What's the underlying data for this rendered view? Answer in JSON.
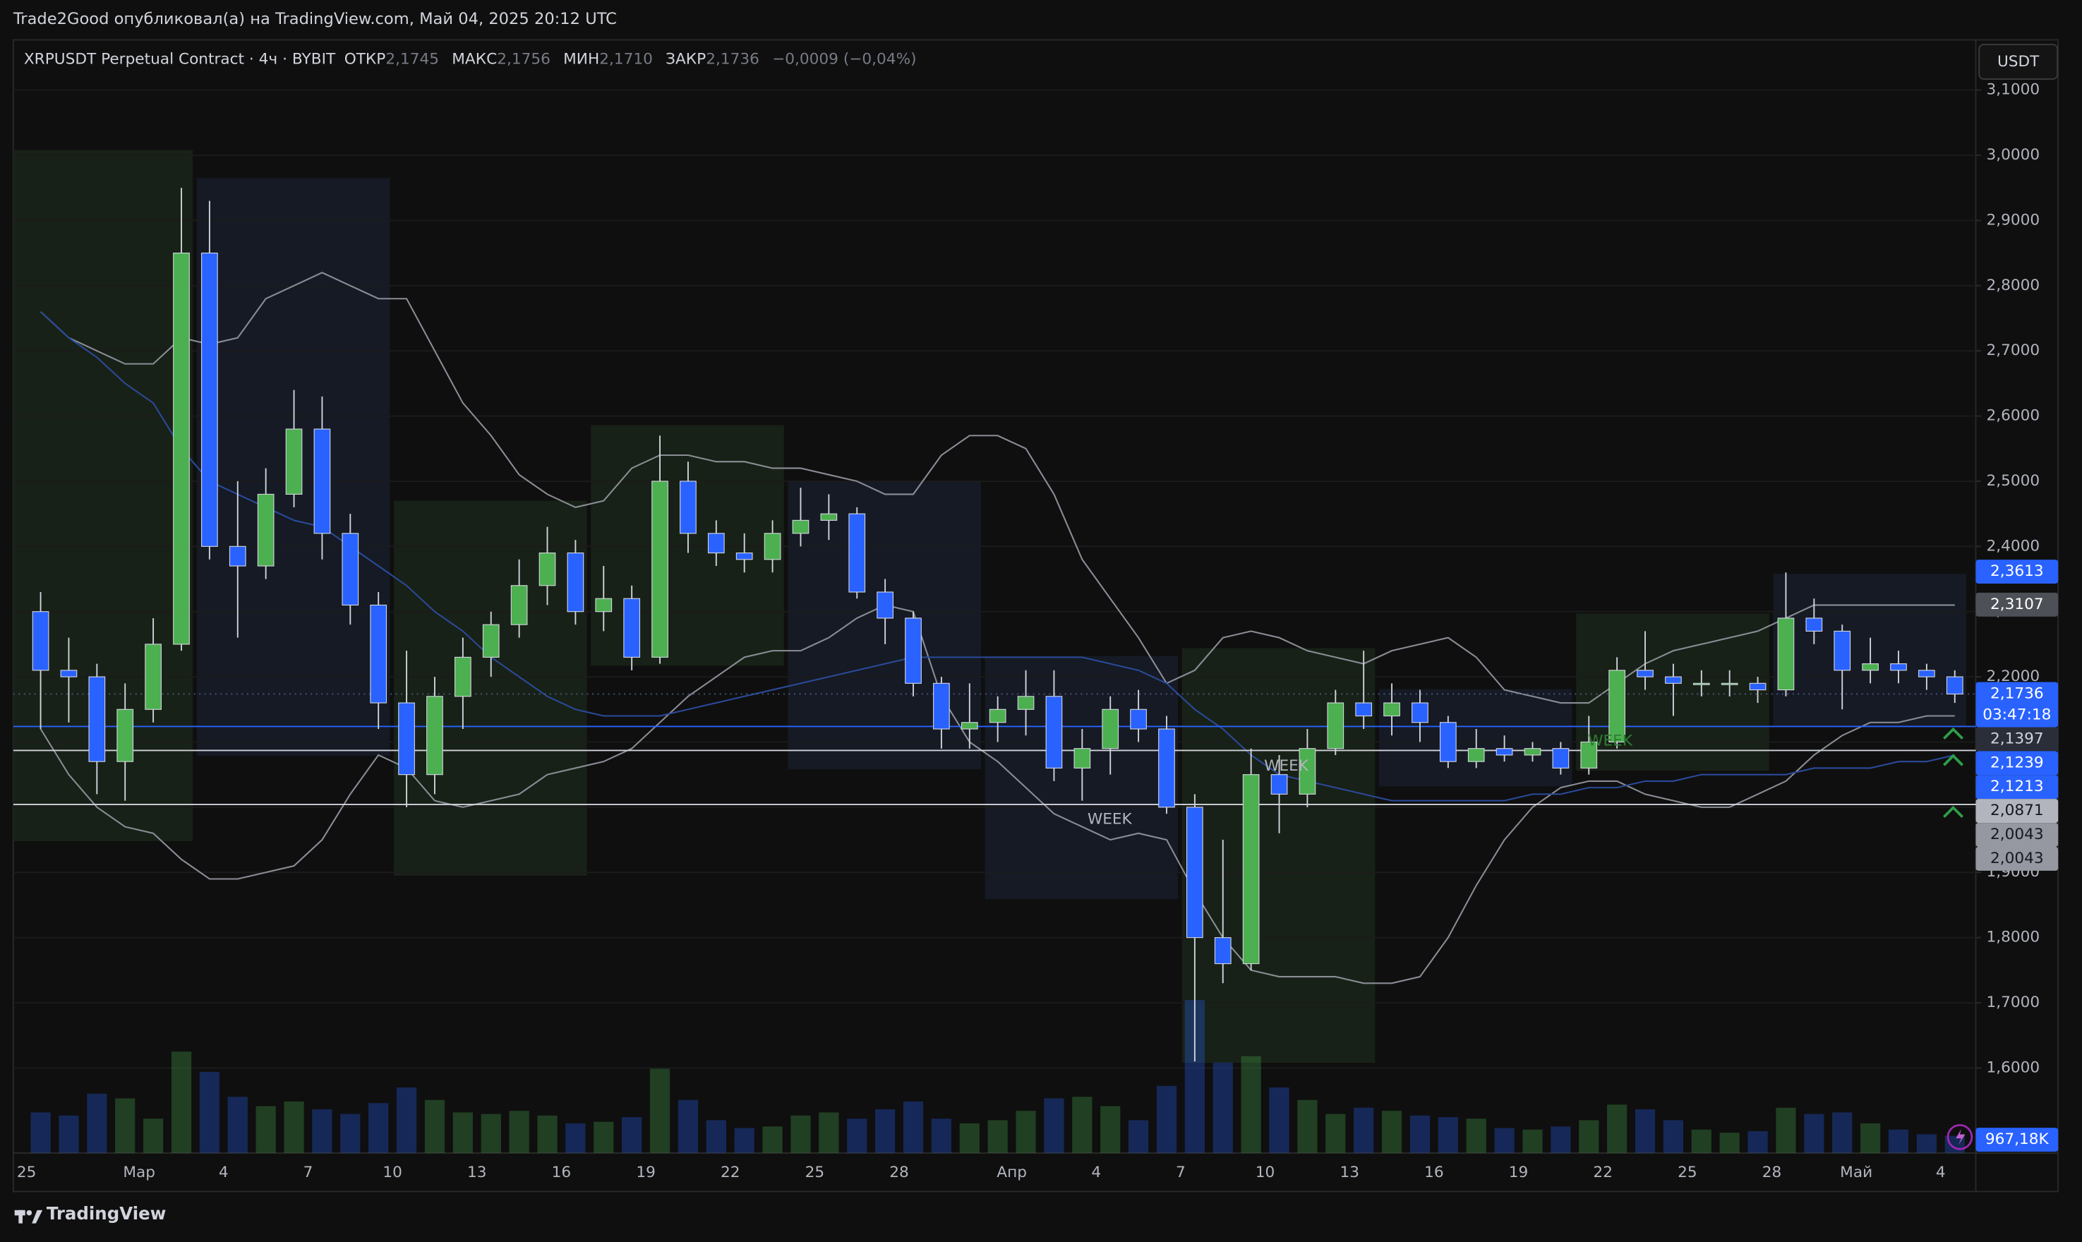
{
  "header": {
    "publisher": "Trade2Good опубликовал(а) на TradingView.com, Май 04, 2025 20:12 UTC"
  },
  "toolbar": {
    "currency": "USDT"
  },
  "footer": {
    "brand": "TradingView"
  },
  "chart_data": {
    "type": "candlestick",
    "title": "XRPUSDT Perpetual Contract · 4ч · BYBIT",
    "ohlc_legend": {
      "open_label": "ОТКР",
      "open": {
        "value": 2.1745,
        "label": "2,1745"
      },
      "high_label": "МАКС",
      "high": {
        "value": 2.1756,
        "label": "2,1756"
      },
      "low_label": "МИН",
      "low": {
        "value": 2.171,
        "label": "2,1710"
      },
      "close_label": "ЗАКР",
      "close": {
        "value": 2.1736,
        "label": "2,1736"
      },
      "change": "−0,0009 (−0,04%)"
    },
    "categories": [
      "25",
      null,
      null,
      null,
      "Мар",
      null,
      null,
      "4",
      null,
      null,
      "7",
      null,
      null,
      "10",
      null,
      null,
      "13",
      null,
      null,
      "16",
      null,
      null,
      "19",
      null,
      null,
      "22",
      null,
      null,
      "25",
      null,
      null,
      "28",
      null,
      null,
      null,
      "Апр",
      null,
      null,
      "4",
      null,
      null,
      "7",
      null,
      null,
      "10",
      null,
      null,
      "13",
      null,
      null,
      "16",
      null,
      null,
      "19",
      null,
      null,
      "22",
      null,
      null,
      "25",
      null,
      null,
      "28",
      null,
      null,
      "Май",
      null,
      null,
      "4"
    ],
    "open": [
      2.3,
      2.21,
      2.2,
      2.07,
      2.15,
      2.25,
      2.85,
      2.4,
      2.37,
      2.48,
      2.58,
      2.42,
      2.31,
      2.16,
      2.05,
      2.17,
      2.23,
      2.28,
      2.34,
      2.39,
      2.3,
      2.32,
      2.23,
      2.5,
      2.42,
      2.39,
      2.38,
      2.42,
      2.44,
      2.45,
      2.33,
      2.29,
      2.19,
      2.12,
      2.13,
      2.15,
      2.17,
      2.06,
      2.09,
      2.15,
      2.12,
      2.0,
      1.8,
      1.76,
      2.05,
      2.02,
      2.09,
      2.16,
      2.14,
      2.16,
      2.13,
      2.07,
      2.09,
      2.08,
      2.09,
      2.06,
      2.1,
      2.21,
      2.2,
      2.19,
      2.19,
      2.19,
      2.18,
      2.29,
      2.27,
      2.21,
      2.22,
      2.21,
      2.2
    ],
    "high": [
      2.33,
      2.26,
      2.22,
      2.19,
      2.29,
      2.95,
      2.93,
      2.5,
      2.52,
      2.64,
      2.63,
      2.45,
      2.33,
      2.24,
      2.2,
      2.26,
      2.3,
      2.38,
      2.43,
      2.41,
      2.37,
      2.34,
      2.57,
      2.53,
      2.44,
      2.42,
      2.44,
      2.49,
      2.48,
      2.46,
      2.35,
      2.3,
      2.2,
      2.19,
      2.17,
      2.21,
      2.21,
      2.12,
      2.17,
      2.18,
      2.14,
      2.02,
      1.95,
      2.09,
      2.08,
      2.12,
      2.18,
      2.24,
      2.19,
      2.18,
      2.14,
      2.12,
      2.11,
      2.1,
      2.1,
      2.14,
      2.23,
      2.27,
      2.22,
      2.21,
      2.21,
      2.2,
      2.36,
      2.32,
      2.28,
      2.26,
      2.24,
      2.22,
      2.21
    ],
    "low": [
      2.12,
      2.13,
      2.02,
      2.01,
      2.13,
      2.24,
      2.38,
      2.26,
      2.35,
      2.46,
      2.38,
      2.28,
      2.12,
      2.0,
      2.02,
      2.12,
      2.2,
      2.26,
      2.31,
      2.28,
      2.27,
      2.21,
      2.22,
      2.39,
      2.37,
      2.36,
      2.36,
      2.4,
      2.41,
      2.32,
      2.25,
      2.17,
      2.09,
      2.09,
      2.1,
      2.11,
      2.04,
      2.01,
      2.05,
      2.1,
      1.99,
      1.61,
      1.73,
      1.75,
      1.96,
      2.0,
      2.08,
      2.12,
      2.11,
      2.1,
      2.06,
      2.06,
      2.07,
      2.07,
      2.05,
      2.05,
      2.09,
      2.18,
      2.14,
      2.17,
      2.17,
      2.16,
      2.17,
      2.25,
      2.15,
      2.19,
      2.19,
      2.18,
      2.16
    ],
    "close": [
      2.21,
      2.2,
      2.07,
      2.15,
      2.25,
      2.85,
      2.4,
      2.37,
      2.48,
      2.58,
      2.42,
      2.31,
      2.16,
      2.05,
      2.17,
      2.23,
      2.28,
      2.34,
      2.39,
      2.3,
      2.32,
      2.23,
      2.5,
      2.42,
      2.39,
      2.38,
      2.42,
      2.44,
      2.45,
      2.33,
      2.29,
      2.19,
      2.12,
      2.13,
      2.15,
      2.17,
      2.06,
      2.09,
      2.15,
      2.12,
      2.0,
      1.8,
      1.76,
      2.05,
      2.02,
      2.09,
      2.16,
      2.14,
      2.16,
      2.13,
      2.07,
      2.09,
      2.08,
      2.09,
      2.06,
      2.1,
      2.21,
      2.2,
      2.19,
      2.19,
      2.19,
      2.18,
      2.29,
      2.27,
      2.21,
      2.22,
      2.21,
      2.2,
      2.1736
    ],
    "up_color": "#4caf50",
    "down_color": "#2962ff",
    "wick_color": "#d1d4dc",
    "volume": [
      2600,
      2400,
      3800,
      3500,
      2200,
      6500,
      5200,
      3600,
      3000,
      3300,
      2800,
      2500,
      3200,
      4200,
      3400,
      2600,
      2500,
      2700,
      2400,
      1900,
      2000,
      2300,
      5400,
      3400,
      2100,
      1600,
      1700,
      2400,
      2600,
      2200,
      2800,
      3300,
      2200,
      1900,
      2100,
      2700,
      3500,
      3600,
      3000,
      2100,
      4300,
      9800,
      5800,
      6200,
      4200,
      3400,
      2500,
      2900,
      2700,
      2400,
      2300,
      2200,
      1600,
      1500,
      1700,
      2100,
      3100,
      2800,
      2100,
      1500,
      1300,
      1400,
      2900,
      2500,
      2600,
      1900,
      1500,
      1200,
      1100
    ],
    "volume_ylim": [
      0,
      16000
    ],
    "volume_label": {
      "value": 967.18,
      "label": "967,18K"
    },
    "lines": [
      {
        "color": "#8a8d96",
        "values": [
          2.76,
          2.72,
          2.7,
          2.68,
          2.68,
          2.72,
          2.71,
          2.72,
          2.78,
          2.8,
          2.82,
          2.8,
          2.78,
          2.78,
          2.7,
          2.62,
          2.57,
          2.51,
          2.48,
          2.46,
          2.47,
          2.52,
          2.54,
          2.54,
          2.53,
          2.53,
          2.52,
          2.52,
          2.51,
          2.5,
          2.48,
          2.48,
          2.54,
          2.57,
          2.57,
          2.55,
          2.48,
          2.38,
          2.32,
          2.26,
          2.19,
          2.21,
          2.26,
          2.27,
          2.26,
          2.24,
          2.23,
          2.22,
          2.24,
          2.25,
          2.26,
          2.23,
          2.18,
          2.17,
          2.16,
          2.16,
          2.19,
          2.22,
          2.24,
          2.25,
          2.26,
          2.27,
          2.29,
          2.31,
          2.31,
          2.31,
          2.31,
          2.31,
          2.31
        ]
      },
      {
        "color": "#8a8d96",
        "values": [
          2.12,
          2.05,
          2.0,
          1.97,
          1.96,
          1.92,
          1.89,
          1.89,
          1.9,
          1.91,
          1.95,
          2.02,
          2.08,
          2.06,
          2.01,
          2.0,
          2.01,
          2.02,
          2.05,
          2.06,
          2.07,
          2.09,
          2.13,
          2.17,
          2.2,
          2.23,
          2.24,
          2.24,
          2.26,
          2.29,
          2.31,
          2.3,
          2.17,
          2.1,
          2.07,
          2.03,
          1.99,
          1.97,
          1.95,
          1.96,
          1.95,
          1.87,
          1.8,
          1.75,
          1.74,
          1.74,
          1.74,
          1.73,
          1.73,
          1.74,
          1.8,
          1.88,
          1.95,
          2.0,
          2.03,
          2.04,
          2.04,
          2.02,
          2.01,
          2.0,
          2.0,
          2.02,
          2.04,
          2.08,
          2.11,
          2.13,
          2.13,
          2.14,
          2.14
        ]
      },
      {
        "color": "#2a4a9a",
        "values": [
          2.76,
          2.72,
          2.69,
          2.65,
          2.62,
          2.55,
          2.5,
          2.48,
          2.46,
          2.44,
          2.43,
          2.4,
          2.37,
          2.34,
          2.3,
          2.27,
          2.23,
          2.2,
          2.17,
          2.15,
          2.14,
          2.14,
          2.14,
          2.15,
          2.16,
          2.17,
          2.18,
          2.19,
          2.2,
          2.21,
          2.22,
          2.23,
          2.23,
          2.23,
          2.23,
          2.23,
          2.23,
          2.23,
          2.22,
          2.21,
          2.19,
          2.15,
          2.12,
          2.08,
          2.05,
          2.04,
          2.03,
          2.02,
          2.01,
          2.01,
          2.01,
          2.01,
          2.01,
          2.02,
          2.02,
          2.03,
          2.03,
          2.04,
          2.04,
          2.05,
          2.05,
          2.05,
          2.05,
          2.06,
          2.06,
          2.06,
          2.07,
          2.07,
          2.08
        ]
      }
    ],
    "weekly_boxes": [
      {
        "high": 3.008,
        "low": 1.948,
        "color": "#1a2418"
      },
      {
        "high": 2.965,
        "low": 2.079,
        "color": "#161c27"
      },
      {
        "high": 2.47,
        "low": 1.895,
        "color": "#1a2418"
      },
      {
        "high": 2.586,
        "low": 2.217,
        "color": "#1a2418"
      },
      {
        "high": 2.501,
        "low": 2.058,
        "color": "#161c27"
      },
      {
        "high": 2.232,
        "low": 1.859,
        "color": "#161c27"
      },
      {
        "high": 2.244,
        "low": 1.608,
        "color": "#1a2418"
      },
      {
        "high": 2.181,
        "low": 2.032,
        "color": "#161c27"
      },
      {
        "high": 2.297,
        "low": 2.056,
        "color": "#1a2418"
      },
      {
        "high": 2.358,
        "low": 2.124,
        "color": "#161c27"
      }
    ],
    "annotations": [
      "WEEK",
      "WEEK",
      "WEEK"
    ],
    "ylim": [
      1.4696,
      3.177
    ],
    "yticks": [
      {
        "value": 1.6,
        "label": "1,6000"
      },
      {
        "value": 1.7,
        "label": "1,7000"
      },
      {
        "value": 1.8,
        "label": "1,8000"
      },
      {
        "value": 1.9,
        "label": "1,9000"
      },
      {
        "value": 2.0,
        "label": "2,0000"
      },
      {
        "value": 2.1,
        "label": "2,1000"
      },
      {
        "value": 2.2,
        "label": "2,2000"
      },
      {
        "value": 2.3,
        "label": "2,3000"
      },
      {
        "value": 2.4,
        "label": "2,4000"
      },
      {
        "value": 2.5,
        "label": "2,5000"
      },
      {
        "value": 2.6,
        "label": "2,6000"
      },
      {
        "value": 2.7,
        "label": "2,7000"
      },
      {
        "value": 2.8,
        "label": "2,8000"
      },
      {
        "value": 2.9,
        "label": "2,9000"
      },
      {
        "value": 3.0,
        "label": "3,0000"
      },
      {
        "value": 3.1,
        "label": "3,1000"
      }
    ],
    "grid": true,
    "price_labels": [
      {
        "value": 2.3613,
        "label": "2,3613",
        "color": "#2962ff",
        "text_color": "#ffffff"
      },
      {
        "value": 2.3107,
        "label": "2,3107",
        "color": "#4e5058",
        "text_color": "#ffffff"
      },
      {
        "value": 2.1736,
        "label": "2,1736",
        "color": "#2962ff",
        "text_color": "#ffffff",
        "countdown": "03:47:18",
        "line": "dotted",
        "line_color": "#4a5a8a"
      },
      {
        "value": 2.1397,
        "label": "2,1397",
        "color": "#2a2e39",
        "text_color": "#d1d4dc"
      },
      {
        "value": 2.1239,
        "label": "2,1239",
        "color": "#2962ff",
        "text_color": "#ffffff",
        "line": "solid",
        "line_color": "#2962ff"
      },
      {
        "value": 2.1213,
        "label": "2,1213",
        "color": "#2962ff",
        "text_color": "#ffffff"
      },
      {
        "value": 2.0871,
        "label": "2,0871",
        "color": "#b2b5be",
        "text_color": "#131722",
        "line": "solid",
        "line_color": "#d1d4dc"
      },
      {
        "value": 2.0043,
        "label": "2,0043",
        "color": "#9598a1",
        "text_color": "#131722",
        "line": "solid",
        "line_color": "#d1d4dc"
      },
      {
        "value": 2.0043,
        "label": "2,0043",
        "color": "#9598a1",
        "text_color": "#131722"
      }
    ]
  }
}
